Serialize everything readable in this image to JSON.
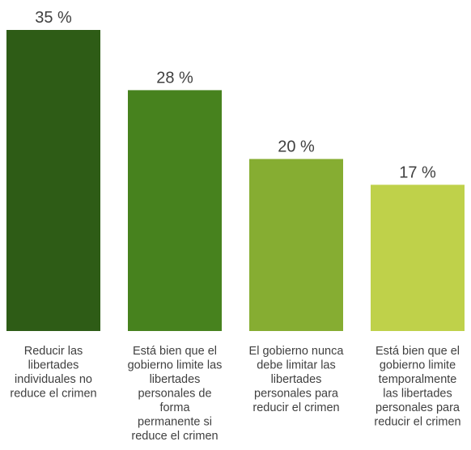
{
  "chart_data": {
    "type": "bar",
    "categories": [
      [
        "Reducir las",
        "libertades",
        "individuales no",
        "reduce el crimen"
      ],
      [
        "Está bien que el",
        "gobierno limite las",
        "libertades",
        "personales de",
        "forma",
        "permanente si",
        "reduce el crimen"
      ],
      [
        "El gobierno nunca",
        "debe limitar las",
        "libertades",
        "personales para",
        "reducir el crimen"
      ],
      [
        "Está bien que el",
        "gobierno limite",
        "temporalmente",
        "las libertades",
        "personales para",
        "reducir el crimen"
      ]
    ],
    "values": [
      35,
      28,
      20,
      17
    ],
    "value_labels": [
      "35 %",
      "28 %",
      "20 %",
      "17 %"
    ],
    "colors": [
      "#2e5c16",
      "#47821e",
      "#86ad32",
      "#bfd14a"
    ],
    "ylim": [
      0,
      35
    ],
    "grid": false,
    "legend": "none"
  }
}
